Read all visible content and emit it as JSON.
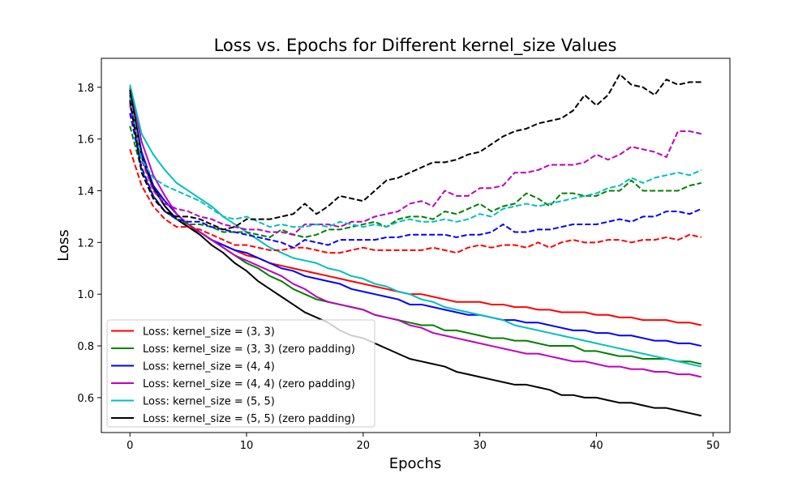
{
  "chart_data": {
    "type": "line",
    "title": "Loss vs. Epochs for Different kernel_size Values",
    "xlabel": "Epochs",
    "ylabel": "Loss",
    "xlim": [
      -2.45,
      51.45
    ],
    "ylim": [
      0.465,
      1.912
    ],
    "xticks": [
      0,
      10,
      20,
      30,
      40,
      50
    ],
    "yticks": [
      0.6,
      0.8,
      1.0,
      1.2,
      1.4,
      1.6,
      1.8
    ],
    "grid": false,
    "legend_placement": "lower-left",
    "x": [
      0,
      1,
      2,
      3,
      4,
      5,
      6,
      7,
      8,
      9,
      10,
      11,
      12,
      13,
      14,
      15,
      16,
      17,
      18,
      19,
      20,
      21,
      22,
      23,
      24,
      25,
      26,
      27,
      28,
      29,
      30,
      31,
      32,
      33,
      34,
      35,
      36,
      37,
      38,
      39,
      40,
      41,
      42,
      43,
      44,
      45,
      46,
      47,
      48,
      49
    ],
    "series": [
      {
        "name": "Loss: kernel_size = (3, 3)",
        "color": "#ff0000",
        "style": "solid",
        "legend": true,
        "values": [
          1.74,
          1.53,
          1.42,
          1.34,
          1.29,
          1.26,
          1.24,
          1.21,
          1.19,
          1.17,
          1.15,
          1.14,
          1.12,
          1.11,
          1.1,
          1.09,
          1.08,
          1.07,
          1.06,
          1.05,
          1.04,
          1.03,
          1.02,
          1.01,
          1.0,
          1.0,
          0.99,
          0.98,
          0.97,
          0.97,
          0.97,
          0.96,
          0.96,
          0.95,
          0.95,
          0.94,
          0.94,
          0.93,
          0.93,
          0.93,
          0.92,
          0.92,
          0.91,
          0.91,
          0.9,
          0.9,
          0.9,
          0.89,
          0.89,
          0.88
        ]
      },
      {
        "name": "Loss: kernel_size = (3, 3) (zero padding)",
        "color": "#008000",
        "style": "solid",
        "legend": true,
        "values": [
          1.78,
          1.55,
          1.42,
          1.34,
          1.29,
          1.26,
          1.24,
          1.21,
          1.18,
          1.15,
          1.12,
          1.1,
          1.07,
          1.05,
          1.02,
          1.0,
          0.98,
          0.97,
          0.96,
          0.95,
          0.94,
          0.92,
          0.91,
          0.9,
          0.89,
          0.88,
          0.88,
          0.86,
          0.86,
          0.85,
          0.84,
          0.83,
          0.83,
          0.82,
          0.82,
          0.81,
          0.8,
          0.8,
          0.8,
          0.78,
          0.78,
          0.77,
          0.76,
          0.76,
          0.75,
          0.75,
          0.75,
          0.74,
          0.74,
          0.73
        ]
      },
      {
        "name": "Loss: kernel_size = (4, 4)",
        "color": "#0000ff",
        "style": "solid",
        "legend": true,
        "values": [
          1.77,
          1.55,
          1.42,
          1.36,
          1.31,
          1.27,
          1.24,
          1.21,
          1.19,
          1.17,
          1.16,
          1.14,
          1.12,
          1.1,
          1.09,
          1.07,
          1.06,
          1.05,
          1.04,
          1.02,
          1.01,
          1.0,
          0.99,
          0.98,
          0.96,
          0.96,
          0.95,
          0.94,
          0.93,
          0.92,
          0.92,
          0.91,
          0.9,
          0.9,
          0.89,
          0.89,
          0.88,
          0.87,
          0.86,
          0.86,
          0.85,
          0.85,
          0.84,
          0.84,
          0.83,
          0.82,
          0.82,
          0.81,
          0.81,
          0.8
        ]
      },
      {
        "name": "Loss: kernel_size = (4, 4) (zero padding)",
        "color": "#bf00bf",
        "style": "solid",
        "legend": true,
        "values": [
          1.8,
          1.59,
          1.46,
          1.38,
          1.31,
          1.27,
          1.24,
          1.21,
          1.18,
          1.15,
          1.13,
          1.11,
          1.09,
          1.07,
          1.04,
          1.02,
          0.99,
          0.97,
          0.96,
          0.95,
          0.94,
          0.92,
          0.91,
          0.9,
          0.88,
          0.87,
          0.85,
          0.84,
          0.83,
          0.82,
          0.81,
          0.8,
          0.79,
          0.78,
          0.77,
          0.77,
          0.76,
          0.75,
          0.74,
          0.74,
          0.73,
          0.72,
          0.72,
          0.71,
          0.71,
          0.7,
          0.7,
          0.69,
          0.69,
          0.68
        ]
      },
      {
        "name": "Loss: kernel_size = (5, 5)",
        "color": "#00bfbf",
        "style": "solid",
        "legend": true,
        "values": [
          1.81,
          1.62,
          1.54,
          1.48,
          1.43,
          1.4,
          1.37,
          1.34,
          1.3,
          1.27,
          1.24,
          1.21,
          1.18,
          1.16,
          1.14,
          1.13,
          1.12,
          1.1,
          1.09,
          1.07,
          1.06,
          1.04,
          1.03,
          1.01,
          1.0,
          0.98,
          0.97,
          0.95,
          0.94,
          0.93,
          0.92,
          0.91,
          0.9,
          0.88,
          0.87,
          0.86,
          0.85,
          0.84,
          0.83,
          0.82,
          0.81,
          0.8,
          0.79,
          0.78,
          0.77,
          0.76,
          0.75,
          0.74,
          0.73,
          0.72
        ]
      },
      {
        "name": "Loss: kernel_size = (5, 5) (zero padding)",
        "color": "#000000",
        "style": "solid",
        "legend": true,
        "values": [
          1.79,
          1.53,
          1.41,
          1.34,
          1.29,
          1.26,
          1.23,
          1.19,
          1.16,
          1.12,
          1.09,
          1.05,
          1.02,
          0.99,
          0.96,
          0.93,
          0.91,
          0.89,
          0.86,
          0.84,
          0.83,
          0.81,
          0.79,
          0.77,
          0.75,
          0.74,
          0.73,
          0.72,
          0.7,
          0.69,
          0.68,
          0.67,
          0.66,
          0.65,
          0.65,
          0.64,
          0.63,
          0.61,
          0.61,
          0.6,
          0.6,
          0.59,
          0.58,
          0.58,
          0.57,
          0.56,
          0.56,
          0.55,
          0.54,
          0.53
        ]
      },
      {
        "name": "",
        "color": "#ff0000",
        "style": "dashed",
        "legend": false,
        "values": [
          1.56,
          1.42,
          1.34,
          1.29,
          1.26,
          1.26,
          1.25,
          1.23,
          1.21,
          1.19,
          1.19,
          1.18,
          1.17,
          1.17,
          1.18,
          1.18,
          1.17,
          1.16,
          1.16,
          1.17,
          1.18,
          1.17,
          1.17,
          1.17,
          1.17,
          1.17,
          1.18,
          1.17,
          1.16,
          1.18,
          1.19,
          1.18,
          1.19,
          1.19,
          1.18,
          1.2,
          1.18,
          1.2,
          1.21,
          1.2,
          1.2,
          1.21,
          1.21,
          1.2,
          1.21,
          1.21,
          1.22,
          1.21,
          1.23,
          1.22
        ]
      },
      {
        "name": "",
        "color": "#008000",
        "style": "dashed",
        "legend": false,
        "values": [
          1.65,
          1.48,
          1.38,
          1.32,
          1.29,
          1.27,
          1.27,
          1.26,
          1.24,
          1.24,
          1.24,
          1.23,
          1.22,
          1.25,
          1.23,
          1.22,
          1.23,
          1.25,
          1.25,
          1.26,
          1.27,
          1.28,
          1.26,
          1.29,
          1.3,
          1.3,
          1.29,
          1.32,
          1.31,
          1.33,
          1.35,
          1.32,
          1.34,
          1.35,
          1.39,
          1.37,
          1.34,
          1.39,
          1.39,
          1.38,
          1.38,
          1.4,
          1.4,
          1.44,
          1.4,
          1.4,
          1.4,
          1.4,
          1.42,
          1.43
        ]
      },
      {
        "name": "",
        "color": "#0000ff",
        "style": "dashed",
        "legend": false,
        "values": [
          1.7,
          1.49,
          1.38,
          1.32,
          1.29,
          1.28,
          1.28,
          1.26,
          1.25,
          1.24,
          1.23,
          1.22,
          1.21,
          1.2,
          1.18,
          1.21,
          1.2,
          1.19,
          1.21,
          1.21,
          1.21,
          1.21,
          1.22,
          1.22,
          1.23,
          1.23,
          1.23,
          1.23,
          1.22,
          1.23,
          1.23,
          1.24,
          1.27,
          1.24,
          1.24,
          1.25,
          1.25,
          1.26,
          1.27,
          1.27,
          1.27,
          1.28,
          1.29,
          1.28,
          1.3,
          1.3,
          1.32,
          1.32,
          1.31,
          1.33
        ]
      },
      {
        "name": "",
        "color": "#bf00bf",
        "style": "dashed",
        "legend": false,
        "values": [
          1.73,
          1.52,
          1.4,
          1.35,
          1.33,
          1.32,
          1.3,
          1.29,
          1.27,
          1.26,
          1.25,
          1.25,
          1.24,
          1.24,
          1.23,
          1.27,
          1.27,
          1.27,
          1.26,
          1.28,
          1.28,
          1.3,
          1.31,
          1.32,
          1.35,
          1.36,
          1.34,
          1.4,
          1.38,
          1.38,
          1.41,
          1.41,
          1.42,
          1.47,
          1.47,
          1.48,
          1.5,
          1.5,
          1.5,
          1.51,
          1.54,
          1.52,
          1.54,
          1.57,
          1.56,
          1.55,
          1.53,
          1.63,
          1.63,
          1.62
        ]
      },
      {
        "name": "",
        "color": "#00bfbf",
        "style": "dashed",
        "legend": false,
        "values": [
          1.76,
          1.52,
          1.45,
          1.42,
          1.4,
          1.38,
          1.36,
          1.33,
          1.3,
          1.29,
          1.3,
          1.28,
          1.26,
          1.27,
          1.26,
          1.26,
          1.27,
          1.26,
          1.28,
          1.27,
          1.26,
          1.27,
          1.26,
          1.28,
          1.29,
          1.28,
          1.28,
          1.29,
          1.28,
          1.29,
          1.31,
          1.3,
          1.33,
          1.34,
          1.35,
          1.34,
          1.35,
          1.36,
          1.37,
          1.38,
          1.39,
          1.41,
          1.42,
          1.45,
          1.43,
          1.45,
          1.46,
          1.47,
          1.46,
          1.48
        ]
      },
      {
        "name": "",
        "color": "#000000",
        "style": "dashed",
        "legend": false,
        "values": [
          1.75,
          1.47,
          1.37,
          1.32,
          1.3,
          1.3,
          1.29,
          1.27,
          1.25,
          1.26,
          1.29,
          1.29,
          1.29,
          1.3,
          1.31,
          1.35,
          1.31,
          1.34,
          1.38,
          1.37,
          1.36,
          1.4,
          1.44,
          1.45,
          1.47,
          1.49,
          1.51,
          1.51,
          1.52,
          1.54,
          1.55,
          1.58,
          1.61,
          1.63,
          1.64,
          1.66,
          1.67,
          1.68,
          1.71,
          1.77,
          1.73,
          1.77,
          1.85,
          1.81,
          1.8,
          1.77,
          1.83,
          1.81,
          1.82,
          1.82
        ]
      }
    ]
  }
}
